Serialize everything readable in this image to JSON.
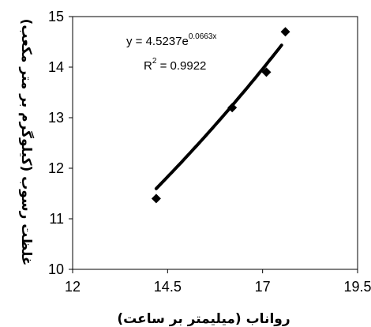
{
  "chart_data": {
    "type": "scatter",
    "xlabel": "رواناب (میلیمتر بر ساعت)",
    "ylabel": "غلظت رسوب (کیلوگرم بر متر مکعب)",
    "xlim": [
      12,
      19.5
    ],
    "ylim": [
      10,
      15
    ],
    "xticks": [
      "12",
      "14.5",
      "17",
      "19.5"
    ],
    "yticks": [
      "10",
      "11",
      "12",
      "13",
      "14",
      "15"
    ],
    "grid": false,
    "series": [
      {
        "marker": "diamond",
        "points": [
          {
            "x": 14.2,
            "y": 11.4
          },
          {
            "x": 16.2,
            "y": 13.2
          },
          {
            "x": 17.1,
            "y": 13.9
          },
          {
            "x": 17.6,
            "y": 14.7
          }
        ]
      }
    ],
    "trendline": {
      "type": "exponential",
      "a": 4.5237,
      "b": 0.0663,
      "x_from": 14.2,
      "x_to": 17.5
    },
    "annotations": {
      "equation_prefix": "y = 4.5237e",
      "equation_exponent": "0.0663x",
      "r2_prefix": "R",
      "r2_sup": "2",
      "r2_value": " = 0.9922"
    }
  }
}
